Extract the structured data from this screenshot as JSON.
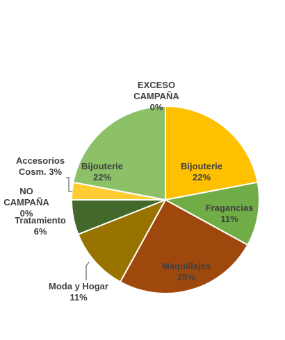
{
  "chart_data": {
    "type": "pie",
    "title": "",
    "slices": [
      {
        "name": "Bijouterie",
        "value": 22,
        "pct_label": "22%",
        "color": "#ffc000"
      },
      {
        "name": "Fragancias",
        "value": 11,
        "pct_label": "11%",
        "color": "#70ad47"
      },
      {
        "name": "Maquillajes",
        "value": 25,
        "pct_label": "25%",
        "color": "#9e480e"
      },
      {
        "name": "Moda y Hogar",
        "value": 11,
        "pct_label": "11%",
        "color": "#997300"
      },
      {
        "name": "Tratamiento",
        "value": 6,
        "pct_label": "6%",
        "color": "#43682b"
      },
      {
        "name": "NO CAMPAÑA",
        "value": 0,
        "pct_label": "0%",
        "color": "#255e91"
      },
      {
        "name": "Accesorios Cosm.",
        "value": 3,
        "pct_label": "3%",
        "color": "#ffcd33"
      },
      {
        "name": "Bijouterie",
        "value": 22,
        "pct_label": "22%",
        "color": "#8cc168"
      },
      {
        "name": "EXCESO CAMPAÑA",
        "value": 0,
        "pct_label": "0%",
        "color": "#a5a5a5"
      }
    ],
    "labels": [
      {
        "lines": [
          "Bijouterie",
          "22%"
        ]
      },
      {
        "lines": [
          "Fragancias",
          "11%"
        ]
      },
      {
        "lines": [
          "Maquillajes",
          "25%"
        ]
      },
      {
        "lines": [
          "Moda y Hogar",
          "11%"
        ]
      },
      {
        "lines": [
          "Tratamiento",
          "6%"
        ]
      },
      {
        "lines": [
          "NO",
          "CAMPAÑA",
          "0%"
        ]
      },
      {
        "lines": [
          "Accesorios",
          "Cosm. 3%"
        ]
      },
      {
        "lines": [
          "Bijouterie",
          "22%"
        ]
      },
      {
        "lines": [
          "EXCESO",
          "CAMPAÑA",
          "0%"
        ]
      }
    ]
  }
}
